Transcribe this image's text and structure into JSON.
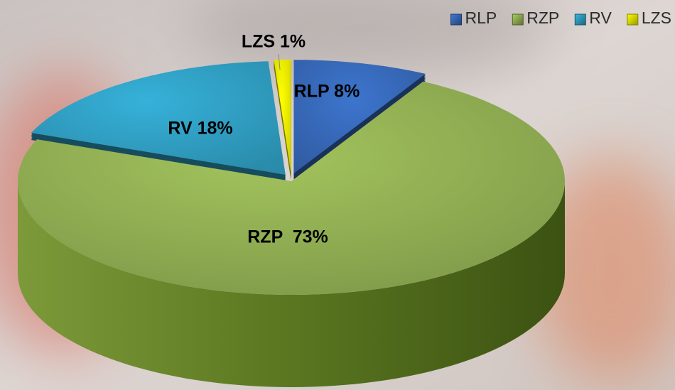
{
  "chart_data": {
    "type": "pie",
    "categories": [
      "RLP",
      "RZP",
      "RV",
      "LZS"
    ],
    "values": [
      8,
      73,
      18,
      1
    ],
    "value_labels": [
      "RLP 8%",
      "RZP  73%",
      "RV 18%",
      "LZS 1%"
    ],
    "colors": [
      "#3a6fc4",
      "#9bbb59",
      "#33a9cf",
      "#ffff00"
    ],
    "legend": "top-right"
  }
}
